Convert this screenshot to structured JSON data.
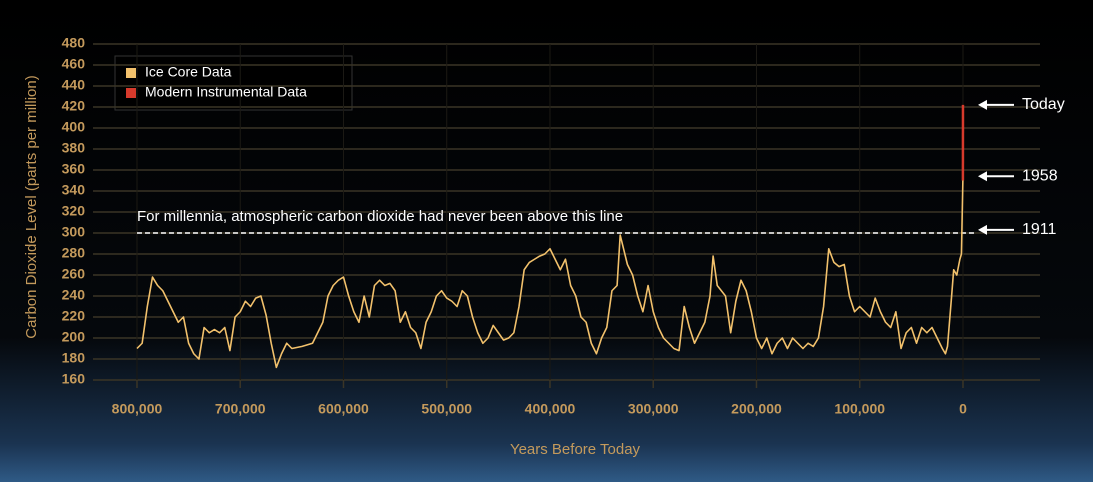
{
  "chart_data": {
    "type": "line",
    "xlabel": "Years Before Today",
    "ylabel": "Carbon Dioxide Level (parts per million)",
    "xlim": [
      842600,
      -74600
    ],
    "ylim": [
      160,
      480
    ],
    "xticks": [
      {
        "value": 800000,
        "label": "800,000"
      },
      {
        "value": 700000,
        "label": "700,000"
      },
      {
        "value": 600000,
        "label": "600,000"
      },
      {
        "value": 500000,
        "label": "500,000"
      },
      {
        "value": 400000,
        "label": "400,000"
      },
      {
        "value": 300000,
        "label": "300,000"
      },
      {
        "value": 200000,
        "label": "200,000"
      },
      {
        "value": 100000,
        "label": "100,000"
      },
      0
    ],
    "yticks": [
      160,
      180,
      200,
      220,
      240,
      260,
      280,
      300,
      320,
      340,
      360,
      380,
      400,
      420,
      440,
      460,
      480
    ],
    "grid": true,
    "legend": "upper left",
    "series": [
      {
        "name": "Ice Core Data",
        "color": "#f2c16c",
        "x": [
          800000,
          795000,
          790000,
          785000,
          780000,
          775000,
          770000,
          765000,
          760000,
          755000,
          750000,
          745000,
          740000,
          735000,
          730000,
          725000,
          720000,
          715000,
          710000,
          705000,
          700000,
          695000,
          690000,
          685000,
          680000,
          675000,
          670000,
          665000,
          660000,
          655000,
          650000,
          640000,
          630000,
          620000,
          615000,
          610000,
          605000,
          600000,
          595000,
          590000,
          585000,
          580000,
          575000,
          570000,
          565000,
          560000,
          555000,
          550000,
          545000,
          540000,
          535000,
          530000,
          525000,
          520000,
          515000,
          510000,
          505000,
          500000,
          495000,
          490000,
          485000,
          480000,
          475000,
          470000,
          465000,
          460000,
          455000,
          450000,
          445000,
          440000,
          435000,
          430000,
          425000,
          420000,
          415000,
          410000,
          405000,
          400000,
          395000,
          390000,
          385000,
          380000,
          375000,
          370000,
          365000,
          360000,
          355000,
          350000,
          345000,
          340000,
          335000,
          332000,
          325000,
          320000,
          315000,
          310000,
          305000,
          300000,
          295000,
          290000,
          285000,
          280000,
          275000,
          270000,
          265000,
          260000,
          255000,
          250000,
          245000,
          242000,
          238000,
          230000,
          225000,
          220000,
          215000,
          210000,
          205000,
          200000,
          195000,
          190000,
          185000,
          180000,
          175000,
          170000,
          165000,
          160000,
          155000,
          150000,
          145000,
          140000,
          135000,
          130000,
          125000,
          120000,
          115000,
          110000,
          105000,
          100000,
          95000,
          90000,
          85000,
          80000,
          75000,
          70000,
          65000,
          60000,
          55000,
          50000,
          45000,
          40000,
          35000,
          30000,
          25000,
          20000,
          17000,
          15000,
          11000,
          9000,
          6000,
          3000,
          1500,
          100
        ],
        "values": [
          190,
          195,
          230,
          258,
          250,
          245,
          235,
          225,
          215,
          220,
          195,
          185,
          180,
          210,
          205,
          208,
          205,
          210,
          188,
          220,
          225,
          235,
          230,
          238,
          240,
          222,
          195,
          172,
          185,
          195,
          190,
          192,
          195,
          215,
          240,
          250,
          255,
          258,
          240,
          225,
          215,
          240,
          220,
          250,
          255,
          250,
          252,
          245,
          215,
          225,
          210,
          205,
          190,
          215,
          225,
          240,
          245,
          238,
          235,
          230,
          245,
          240,
          220,
          205,
          195,
          200,
          212,
          205,
          198,
          200,
          205,
          230,
          265,
          272,
          275,
          278,
          280,
          285,
          275,
          265,
          275,
          250,
          240,
          220,
          215,
          195,
          185,
          200,
          210,
          245,
          250,
          298,
          270,
          260,
          240,
          225,
          250,
          225,
          210,
          200,
          195,
          190,
          188,
          230,
          210,
          195,
          205,
          215,
          240,
          278,
          250,
          240,
          205,
          235,
          255,
          245,
          225,
          200,
          190,
          200,
          185,
          195,
          200,
          190,
          200,
          195,
          190,
          195,
          192,
          200,
          230,
          285,
          272,
          268,
          270,
          240,
          225,
          230,
          225,
          220,
          238,
          225,
          215,
          210,
          225,
          190,
          205,
          210,
          195,
          210,
          205,
          210,
          200,
          190,
          185,
          192,
          240,
          265,
          260,
          275,
          280,
          350
        ]
      },
      {
        "name": "Modern Instrumental Data",
        "color": "#d63a2c",
        "x": [
          60,
          0
        ],
        "values": [
          350,
          422
        ]
      }
    ],
    "reference_line": {
      "value": 300,
      "text": "For millennia, atmospheric carbon dioxide had never been above this line"
    },
    "annotations": [
      {
        "text": "Today",
        "y": 422
      },
      {
        "text": "1958",
        "y": 354
      },
      {
        "text": "1911",
        "y": 303
      }
    ]
  }
}
